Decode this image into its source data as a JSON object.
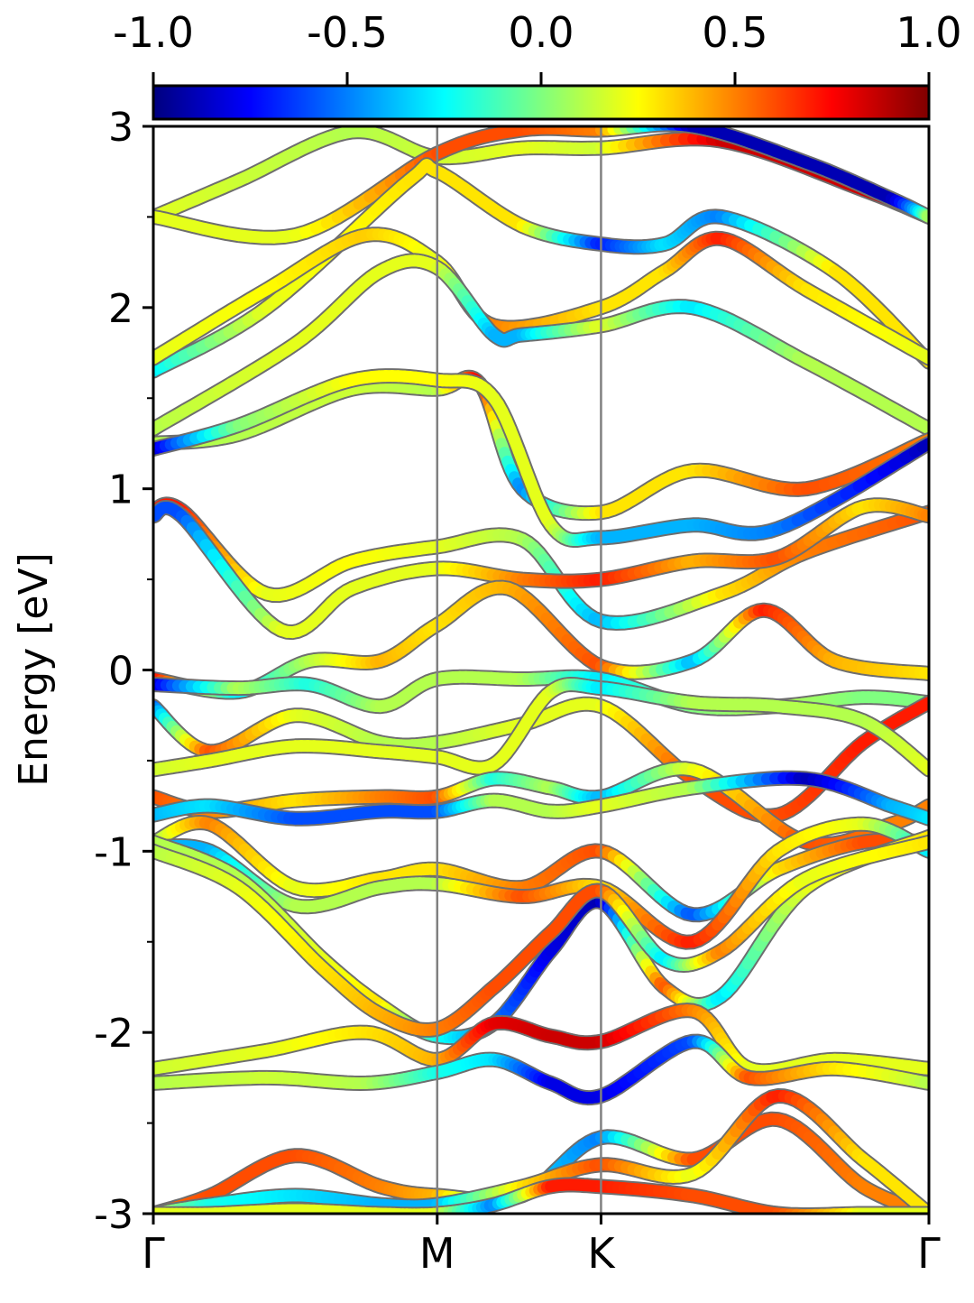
{
  "chart_data": {
    "type": "line",
    "title": "",
    "xlabel": "",
    "ylabel": "Energy [eV]",
    "ylim": [
      -3,
      3
    ],
    "yticks": [
      "3",
      "2",
      "1",
      "0",
      "-1",
      "-2",
      "-3"
    ],
    "ytick_values": [
      3,
      2,
      1,
      0,
      -1,
      -2,
      -3
    ],
    "xticks": [
      {
        "label": "Γ",
        "k": 0
      },
      {
        "label": "M",
        "k": 1
      },
      {
        "label": "K",
        "k": 1.577
      },
      {
        "label": "Γ",
        "k": 2.732
      }
    ],
    "colorbar": {
      "colormap": "jet",
      "range": [
        -1.0,
        1.0
      ],
      "tick_labels": [
        "-1.0",
        "-0.5",
        "0.0",
        "0.5",
        "1.0"
      ],
      "tick_values": [
        -1.0,
        -0.5,
        0.0,
        0.5,
        1.0
      ]
    },
    "series": [
      {
        "k": [
          0,
          0.3,
          0.7,
          1.0,
          1.3,
          1.577,
          2.0,
          2.5,
          2.732
        ],
        "energy": [
          2.5,
          2.7,
          2.97,
          2.83,
          2.88,
          2.88,
          2.92,
          2.65,
          2.5
        ],
        "weight": [
          0.2,
          0.15,
          0.1,
          0.15,
          0.2,
          0.15,
          0.85,
          0.85,
          0.8
        ]
      },
      {
        "k": [
          0,
          0.5,
          1.0,
          1.3,
          1.577,
          1.9,
          2.3,
          2.6,
          2.732
        ],
        "energy": [
          2.5,
          2.4,
          2.85,
          2.98,
          2.98,
          3.0,
          2.8,
          2.6,
          2.5
        ],
        "weight": [
          0.2,
          0.2,
          0.6,
          0.6,
          0.5,
          -0.9,
          -0.9,
          -0.9,
          0.1
        ]
      },
      {
        "k": [
          0,
          0.4,
          0.9,
          1.0,
          1.3,
          1.577,
          1.8,
          2.0,
          2.4,
          2.732
        ],
        "energy": [
          1.65,
          2.0,
          2.7,
          2.75,
          2.45,
          2.35,
          2.35,
          2.5,
          2.2,
          1.7
        ],
        "weight": [
          -0.3,
          0.2,
          0.3,
          0.3,
          0.3,
          -0.7,
          -0.3,
          -0.5,
          0.3,
          0.3
        ]
      },
      {
        "k": [
          0,
          0.4,
          0.75,
          1.0,
          1.2,
          1.577,
          1.8,
          2.0,
          2.3,
          2.732
        ],
        "energy": [
          1.72,
          2.1,
          2.4,
          2.25,
          1.9,
          2.0,
          2.2,
          2.38,
          2.1,
          1.72
        ],
        "weight": [
          0.2,
          0.25,
          0.35,
          0.2,
          0.5,
          0.3,
          0.3,
          0.7,
          0.3,
          0.2
        ]
      },
      {
        "k": [
          0,
          0.5,
          0.8,
          1.0,
          1.2,
          1.3,
          1.577,
          1.9,
          2.3,
          2.732
        ],
        "energy": [
          1.33,
          1.8,
          2.2,
          2.22,
          1.85,
          1.85,
          1.9,
          2.0,
          1.7,
          1.33
        ],
        "weight": [
          0.1,
          0.2,
          0.2,
          0.2,
          -0.4,
          -0.4,
          0.2,
          -0.3,
          0.1,
          0.1
        ]
      },
      {
        "k": [
          0,
          0.3,
          0.7,
          1.0,
          1.15,
          1.3,
          1.577,
          1.9,
          2.3,
          2.732
        ],
        "energy": [
          1.25,
          1.3,
          1.55,
          1.55,
          1.58,
          1.0,
          0.87,
          1.1,
          1.0,
          1.27
        ],
        "weight": [
          0.1,
          0.1,
          0.15,
          0.1,
          0.8,
          -0.5,
          0.3,
          0.3,
          0.6,
          0.5
        ]
      },
      {
        "k": [
          0,
          0.3,
          0.7,
          1.0,
          1.2,
          1.4,
          1.577,
          1.9,
          2.2,
          2.732
        ],
        "energy": [
          1.22,
          1.35,
          1.6,
          1.6,
          1.5,
          0.8,
          0.73,
          0.8,
          0.78,
          1.25
        ],
        "weight": [
          -0.9,
          0.0,
          0.25,
          0.25,
          0.2,
          0.2,
          -0.4,
          -0.4,
          -0.5,
          -0.9
        ]
      },
      {
        "k": [
          0,
          0.1,
          0.4,
          0.7,
          1.0,
          1.3,
          1.577,
          2.0,
          2.3,
          2.732
        ],
        "energy": [
          0.88,
          0.88,
          0.42,
          0.6,
          0.68,
          0.72,
          0.27,
          0.42,
          0.65,
          0.87
        ],
        "weight": [
          0.7,
          0.7,
          0.2,
          0.25,
          0.2,
          0.1,
          -0.4,
          0.3,
          0.5,
          0.6
        ]
      },
      {
        "k": [
          0,
          0.1,
          0.45,
          0.7,
          1.0,
          1.3,
          1.577,
          1.9,
          2.2,
          2.5,
          2.732
        ],
        "energy": [
          0.85,
          0.85,
          0.22,
          0.45,
          0.56,
          0.5,
          0.5,
          0.6,
          0.62,
          0.9,
          0.85
        ],
        "weight": [
          -0.6,
          -0.6,
          0.2,
          0.2,
          0.2,
          0.5,
          0.7,
          0.4,
          0.6,
          0.3,
          0.5
        ]
      },
      {
        "k": [
          0,
          0.3,
          0.55,
          0.8,
          1.0,
          1.25,
          1.577,
          1.9,
          2.15,
          2.4,
          2.732
        ],
        "energy": [
          -0.05,
          -0.12,
          0.05,
          0.05,
          0.25,
          0.45,
          0.02,
          0.05,
          0.33,
          0.05,
          -0.02
        ],
        "weight": [
          0.8,
          -0.3,
          0.1,
          0.4,
          0.3,
          0.4,
          0.6,
          -0.4,
          0.7,
          0.4,
          0.3
        ]
      },
      {
        "k": [
          0,
          0.3,
          0.55,
          0.8,
          1.0,
          1.3,
          1.577,
          1.9,
          2.2,
          2.5,
          2.732
        ],
        "energy": [
          -0.08,
          -0.1,
          -0.08,
          -0.2,
          -0.05,
          -0.05,
          -0.05,
          -0.2,
          -0.2,
          -0.15,
          -0.18
        ],
        "weight": [
          -0.9,
          0.1,
          -0.2,
          0.1,
          0.1,
          0.1,
          -0.3,
          0.0,
          0.1,
          0.0,
          0.0
        ]
      },
      {
        "k": [
          0,
          0.2,
          0.5,
          0.8,
          1.0,
          1.3,
          1.577,
          1.9,
          2.2,
          2.5,
          2.732
        ],
        "energy": [
          -0.2,
          -0.45,
          -0.25,
          -0.4,
          -0.4,
          -0.3,
          -0.2,
          -0.6,
          -0.8,
          -0.4,
          -0.18
        ],
        "weight": [
          -0.6,
          0.6,
          0.2,
          0.1,
          0.1,
          0.2,
          0.2,
          0.6,
          0.6,
          0.7,
          0.7
        ]
      },
      {
        "k": [
          0,
          0.2,
          0.5,
          0.8,
          1.0,
          1.2,
          1.4,
          1.577,
          1.9,
          2.2,
          2.5,
          2.732
        ],
        "energy": [
          -0.55,
          -0.5,
          -0.42,
          -0.45,
          -0.48,
          -0.52,
          -0.12,
          -0.1,
          -0.18,
          -0.2,
          -0.28,
          -0.55
        ],
        "weight": [
          0.15,
          0.2,
          0.2,
          0.2,
          0.2,
          0.2,
          0.2,
          -0.3,
          0.1,
          0.1,
          0.1,
          0.2
        ]
      },
      {
        "k": [
          0,
          0.2,
          0.5,
          0.8,
          1.0,
          1.2,
          1.4,
          1.577,
          1.9,
          2.3,
          2.6,
          2.732
        ],
        "energy": [
          -0.7,
          -0.78,
          -0.72,
          -0.7,
          -0.7,
          -0.6,
          -0.65,
          -0.7,
          -0.55,
          -0.95,
          -0.85,
          -0.75
        ],
        "weight": [
          0.6,
          0.5,
          0.3,
          0.5,
          0.6,
          -0.2,
          0.1,
          -0.4,
          0.2,
          0.6,
          0.5,
          0.5
        ]
      },
      {
        "k": [
          0,
          0.2,
          0.5,
          0.8,
          1.0,
          1.2,
          1.4,
          1.577,
          1.9,
          2.3,
          2.6,
          2.732
        ],
        "energy": [
          -0.8,
          -0.75,
          -0.82,
          -0.78,
          -0.78,
          -0.72,
          -0.78,
          -0.75,
          -0.65,
          -0.6,
          -0.75,
          -0.82
        ],
        "weight": [
          -0.4,
          -0.3,
          -0.6,
          -0.6,
          -0.6,
          0.1,
          0.1,
          0.2,
          0.1,
          -0.9,
          -0.4,
          -0.3
        ]
      },
      {
        "k": [
          0,
          0.2,
          0.5,
          0.8,
          1.0,
          1.3,
          1.577,
          1.9,
          2.2,
          2.5,
          2.732
        ],
        "energy": [
          -0.95,
          -0.85,
          -1.2,
          -1.15,
          -1.1,
          -1.2,
          -1.0,
          -1.35,
          -1.1,
          -0.95,
          -0.95
        ],
        "weight": [
          0.0,
          0.5,
          0.2,
          0.3,
          0.3,
          0.5,
          0.6,
          -0.6,
          0.3,
          0.6,
          0.6
        ]
      },
      {
        "k": [
          0,
          0.2,
          0.5,
          0.8,
          1.0,
          1.3,
          1.577,
          1.9,
          2.2,
          2.5,
          2.732
        ],
        "energy": [
          -0.98,
          -1.0,
          -1.3,
          -1.2,
          -1.18,
          -1.25,
          -1.2,
          -1.5,
          -1.0,
          -0.85,
          -1.0
        ],
        "weight": [
          -0.4,
          -0.4,
          0.1,
          0.1,
          0.1,
          0.6,
          0.3,
          0.7,
          0.3,
          0.2,
          -0.3
        ]
      },
      {
        "k": [
          0,
          0.3,
          0.6,
          0.8,
          1.0,
          1.2,
          1.4,
          1.577,
          1.8,
          2.0,
          2.3,
          2.732
        ],
        "energy": [
          -0.95,
          -1.15,
          -1.6,
          -1.85,
          -2.02,
          -1.95,
          -1.55,
          -1.28,
          -1.75,
          -1.8,
          -1.2,
          -0.92
        ],
        "weight": [
          0.1,
          0.1,
          0.2,
          0.3,
          -0.2,
          -0.5,
          -0.8,
          -0.9,
          0.6,
          -0.3,
          0.2,
          0.3
        ]
      },
      {
        "k": [
          0,
          0.3,
          0.6,
          0.8,
          1.0,
          1.2,
          1.4,
          1.577,
          1.8,
          2.0,
          2.3,
          2.732
        ],
        "energy": [
          -1.0,
          -1.2,
          -1.65,
          -1.9,
          -1.98,
          -1.75,
          -1.45,
          -1.22,
          -1.6,
          -1.55,
          -1.15,
          -0.95
        ],
        "weight": [
          0.1,
          0.2,
          0.3,
          0.4,
          0.5,
          0.6,
          0.6,
          0.6,
          -0.3,
          0.5,
          0.2,
          0.3
        ]
      },
      {
        "k": [
          0,
          0.4,
          0.75,
          1.0,
          1.2,
          1.4,
          1.577,
          1.9,
          2.1,
          2.4,
          2.732
        ],
        "energy": [
          -2.2,
          -2.1,
          -2.0,
          -2.15,
          -1.95,
          -2.02,
          -2.05,
          -1.88,
          -2.2,
          -2.15,
          -2.2
        ],
        "weight": [
          0.15,
          0.2,
          0.3,
          0.4,
          0.8,
          0.85,
          0.85,
          0.5,
          0.2,
          0.2,
          0.2
        ]
      },
      {
        "k": [
          0,
          0.4,
          0.75,
          1.0,
          1.2,
          1.4,
          1.577,
          1.9,
          2.1,
          2.4,
          2.732
        ],
        "energy": [
          -2.28,
          -2.25,
          -2.28,
          -2.22,
          -2.15,
          -2.28,
          -2.35,
          -2.05,
          -2.25,
          -2.2,
          -2.28
        ],
        "weight": [
          0.1,
          0.15,
          0.1,
          -0.2,
          -0.3,
          -0.8,
          -0.8,
          -0.6,
          0.6,
          0.3,
          0.1
        ]
      },
      {
        "k": [
          0,
          0.2,
          0.5,
          0.8,
          1.0,
          1.3,
          1.577,
          1.9,
          2.2,
          2.5,
          2.732
        ],
        "energy": [
          -3.0,
          -2.9,
          -2.68,
          -2.85,
          -2.9,
          -2.9,
          -2.58,
          -2.7,
          -2.48,
          -2.85,
          -3.0
        ],
        "weight": [
          0.5,
          0.6,
          0.6,
          0.5,
          0.4,
          -0.3,
          -0.5,
          0.6,
          0.6,
          0.5,
          0.5
        ]
      },
      {
        "k": [
          0,
          0.2,
          0.5,
          0.8,
          1.0,
          1.3,
          1.577,
          1.9,
          2.2,
          2.5,
          2.732
        ],
        "energy": [
          -3.0,
          -2.95,
          -2.9,
          -2.95,
          -2.95,
          -2.85,
          -2.73,
          -2.78,
          -2.35,
          -2.7,
          -3.0
        ],
        "weight": [
          0.2,
          -0.2,
          -0.3,
          -0.4,
          -0.4,
          0.3,
          0.6,
          0.2,
          0.7,
          0.3,
          0.3
        ]
      },
      {
        "k": [
          0,
          0.2,
          0.5,
          0.8,
          1.0,
          1.2,
          1.4,
          1.577,
          1.9,
          2.2,
          2.5,
          2.732
        ],
        "energy": [
          -3.0,
          -3.0,
          -2.98,
          -3.0,
          -3.0,
          -2.95,
          -2.85,
          -2.85,
          -2.9,
          -3.0,
          -3.0,
          -3.0
        ],
        "weight": [
          0.2,
          0.2,
          0.2,
          0.2,
          0.2,
          -0.5,
          0.7,
          0.7,
          0.6,
          0.6,
          0.2,
          0.2
        ]
      }
    ]
  }
}
